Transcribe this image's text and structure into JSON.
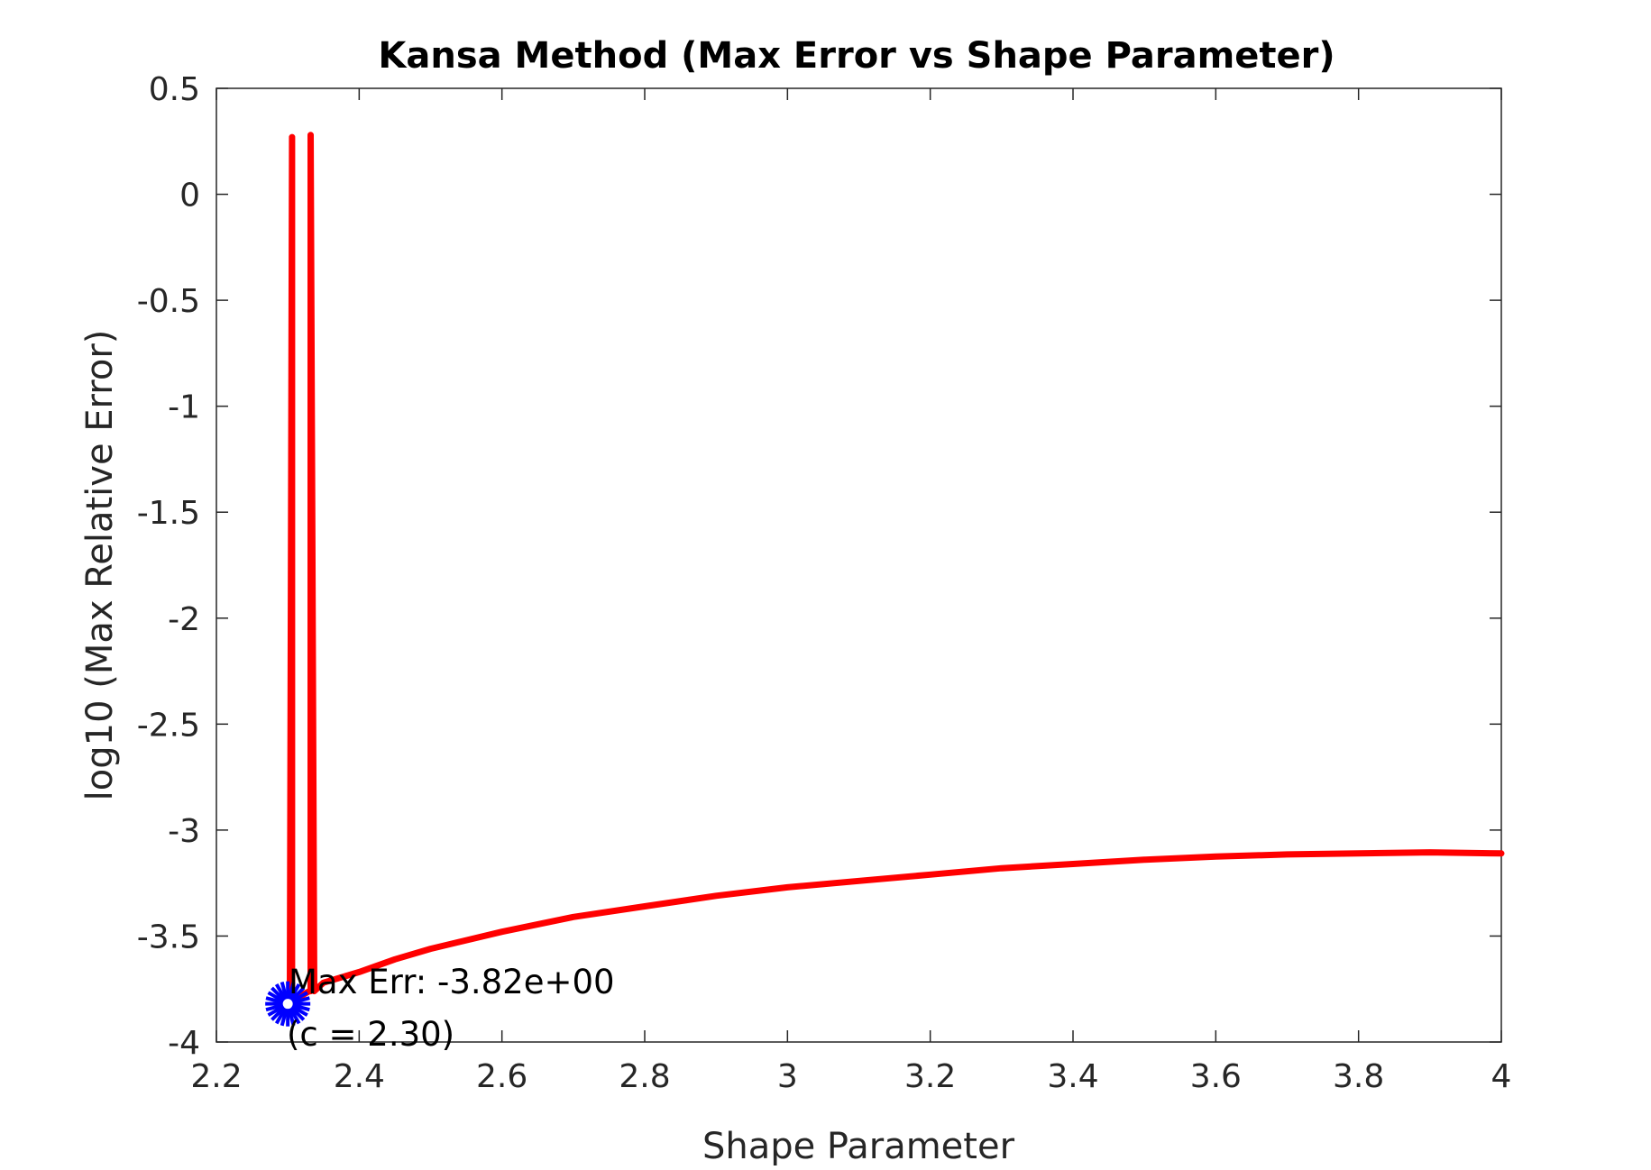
{
  "chart_data": {
    "type": "line",
    "title": "Kansa Method (Max Error vs Shape Parameter)",
    "xlabel": "Shape Parameter",
    "ylabel": "log10 (Max  Relative Error)",
    "xlim": [
      2.2,
      4
    ],
    "ylim": [
      -4,
      0.5
    ],
    "x_ticks": [
      "2.2",
      "2.4",
      "2.6",
      "2.8",
      "3",
      "3.2",
      "3.4",
      "3.6",
      "3.8",
      "4"
    ],
    "y_ticks": [
      "0.5",
      "0",
      "-0.5",
      "-1",
      "-1.5",
      "-2",
      "-2.5",
      "-3",
      "-3.5",
      "-4"
    ],
    "grid": false,
    "series": [
      {
        "color": "#ff0000",
        "x": [
          2.303,
          2.303,
          2.306,
          2.306,
          2.31,
          2.315,
          2.32,
          2.325,
          2.33,
          2.332,
          2.332,
          2.337,
          2.337,
          2.35,
          2.4,
          2.45,
          2.5,
          2.6,
          2.7,
          2.8,
          2.9,
          3.0,
          3.1,
          3.2,
          3.3,
          3.4,
          3.5,
          3.6,
          3.7,
          3.8,
          3.9,
          4.0
        ],
        "y": [
          -3.82,
          -3.75,
          0.27,
          -3.75,
          -3.8,
          -3.79,
          -3.78,
          -3.77,
          -3.76,
          -3.76,
          0.28,
          -3.76,
          -3.76,
          -3.72,
          -3.67,
          -3.61,
          -3.56,
          -3.48,
          -3.41,
          -3.36,
          -3.31,
          -3.27,
          -3.24,
          -3.21,
          -3.18,
          -3.16,
          -3.14,
          -3.125,
          -3.115,
          -3.11,
          -3.105,
          -3.11
        ]
      }
    ],
    "marker": {
      "x": 2.3,
      "y": -3.82,
      "color": "#0000ff",
      "shape": "asterisk"
    },
    "annotation": {
      "line1": "Max Err: -3.82e+00",
      "line2": "(c = 2.30)"
    }
  }
}
